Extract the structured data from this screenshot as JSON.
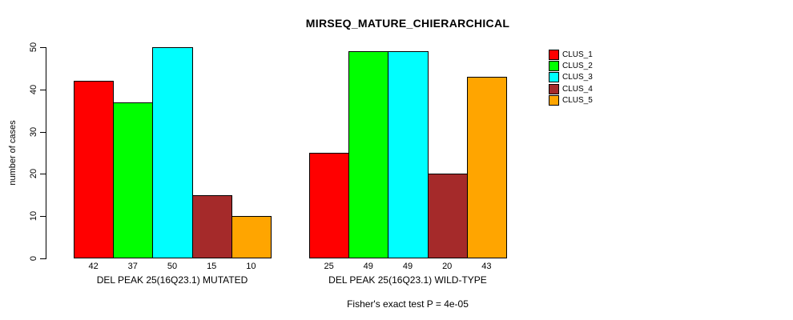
{
  "title": "MIRSEQ_MATURE_CHIERARCHICAL",
  "footer": "Fisher's exact test P = 4e-05",
  "colors": {
    "background": "#FFFFFF",
    "axis": "#000000",
    "text": "#000000"
  },
  "chart_data": {
    "type": "bar",
    "title": "MIRSEQ_MATURE_CHIERARCHICAL",
    "xlabel": "",
    "ylabel": "number of cases",
    "ylim": [
      0,
      50
    ],
    "yticks": [
      0,
      10,
      20,
      30,
      40,
      50
    ],
    "grid": false,
    "legend_position": "right-outside-top",
    "bar_value_labels": true,
    "categories": [
      "DEL PEAK 25(16Q23.1) MUTATED",
      "DEL PEAK 25(16Q23.1) WILD-TYPE"
    ],
    "series": [
      {
        "name": "CLUS_1",
        "color": "#FF0000",
        "values": [
          42,
          25
        ]
      },
      {
        "name": "CLUS_2",
        "color": "#00FF00",
        "values": [
          37,
          49
        ]
      },
      {
        "name": "CLUS_3",
        "color": "#00FFFF",
        "values": [
          50,
          49
        ]
      },
      {
        "name": "CLUS_4",
        "color": "#A52A2A",
        "values": [
          15,
          20
        ]
      },
      {
        "name": "CLUS_5",
        "color": "#FFA500",
        "values": [
          10,
          43
        ]
      }
    ],
    "annotation": "Fisher's exact test P = 4e-05"
  }
}
